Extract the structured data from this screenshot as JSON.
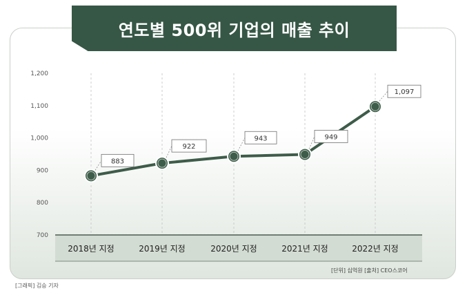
{
  "chart_data": {
    "type": "line",
    "title": "연도별 500위 기업의 매출 추이",
    "categories": [
      "2018년 지정",
      "2019년 지정",
      "2020년 지정",
      "2021년 지정",
      "2022년 지정"
    ],
    "values": [
      883,
      922,
      943,
      949,
      1097
    ],
    "value_labels": [
      "883",
      "922",
      "943",
      "949",
      "1,097"
    ],
    "yticks": [
      "1,200",
      "1,100",
      "1,000",
      "900",
      "800",
      "700"
    ],
    "ytick_values": [
      1200,
      1100,
      1000,
      900,
      800,
      700
    ],
    "ylim": [
      700,
      1200
    ],
    "grid": "vertical dashed",
    "line_color": "#3d5c49"
  },
  "source_text": "[단위] 십억원  [출처] CEO스코어",
  "credit_text": "[그래픽] 김승 기자"
}
